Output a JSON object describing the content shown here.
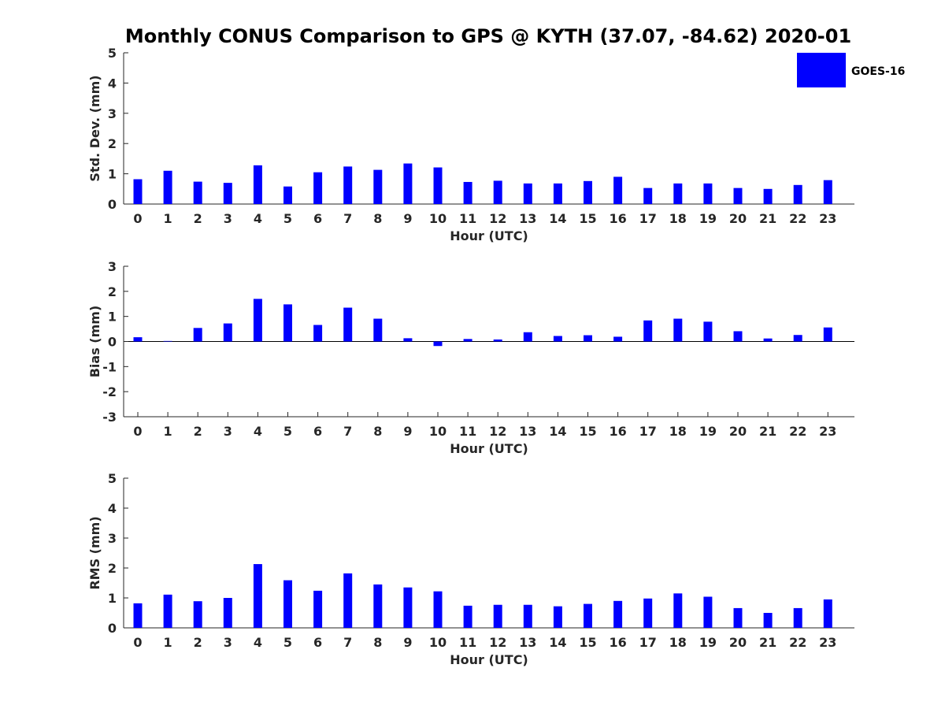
{
  "chart_data": {
    "title": "Monthly CONUS Comparison to GPS @ KYTH (37.07, -84.62) 2020-01",
    "legend": {
      "label": "GOES-16",
      "color": "#0000ff",
      "position": "top-right"
    },
    "type": "bar",
    "hours": [
      "0",
      "1",
      "2",
      "3",
      "4",
      "5",
      "6",
      "7",
      "8",
      "9",
      "10",
      "11",
      "12",
      "13",
      "14",
      "15",
      "16",
      "17",
      "18",
      "19",
      "20",
      "21",
      "22",
      "23"
    ],
    "panels": [
      {
        "type": "bar",
        "ylabel": "Std. Dev. (mm)",
        "xlabel": "Hour (UTC)",
        "ylim": [
          0,
          5
        ],
        "yticks": [
          "0",
          "1",
          "2",
          "3",
          "4",
          "5"
        ],
        "series": [
          {
            "name": "GOES-16",
            "values": [
              0.82,
              1.1,
              0.74,
              0.7,
              1.28,
              0.58,
              1.05,
              1.24,
              1.13,
              1.34,
              1.21,
              0.73,
              0.77,
              0.68,
              0.68,
              0.76,
              0.9,
              0.53,
              0.68,
              0.68,
              0.53,
              0.5,
              0.63,
              0.79
            ]
          }
        ]
      },
      {
        "type": "bar",
        "ylabel": "Bias (mm)",
        "xlabel": "Hour (UTC)",
        "ylim": [
          -3,
          3
        ],
        "yticks": [
          "-3",
          "-2",
          "-1",
          "0",
          "1",
          "2",
          "3"
        ],
        "series": [
          {
            "name": "GOES-16",
            "values": [
              0.17,
              0.02,
              0.54,
              0.72,
              1.7,
              1.48,
              0.66,
              1.35,
              0.91,
              0.13,
              -0.18,
              0.1,
              0.08,
              0.37,
              0.22,
              0.25,
              0.19,
              0.84,
              0.91,
              0.79,
              0.41,
              0.12,
              0.26,
              0.56
            ]
          }
        ]
      },
      {
        "type": "bar",
        "ylabel": "RMS (mm)",
        "xlabel": "Hour (UTC)",
        "ylim": [
          0,
          5
        ],
        "yticks": [
          "0",
          "1",
          "2",
          "3",
          "4",
          "5"
        ],
        "series": [
          {
            "name": "GOES-16",
            "values": [
              0.82,
              1.11,
              0.89,
              1.0,
              2.13,
              1.59,
              1.24,
              1.82,
              1.45,
              1.35,
              1.22,
              0.74,
              0.77,
              0.77,
              0.72,
              0.8,
              0.9,
              0.98,
              1.15,
              1.04,
              0.66,
              0.5,
              0.66,
              0.95
            ]
          }
        ]
      }
    ]
  }
}
